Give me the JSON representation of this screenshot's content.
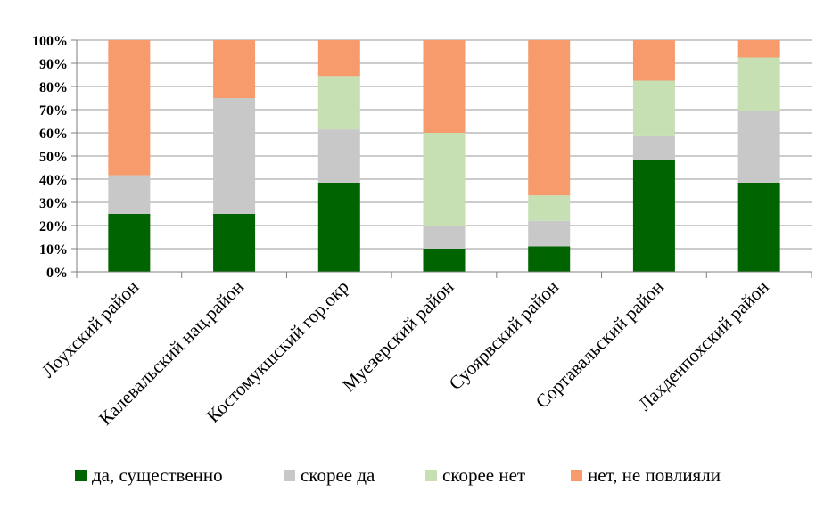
{
  "chart_data": {
    "type": "bar",
    "stacked": true,
    "percent": true,
    "categories": [
      "Лоухский район",
      "Калевальский нац.район",
      "Костомукшский гор.окр",
      "Муезерский  район",
      "Суоярвский район",
      "Сортавальский район",
      "Лахденпохский район"
    ],
    "series": [
      {
        "name": "да, существенно",
        "color": "#006400",
        "values": [
          25,
          25,
          38.5,
          10,
          11,
          48.5,
          38.5
        ]
      },
      {
        "name": "скорее да",
        "color": "#c8c8c8",
        "values": [
          16.7,
          50,
          23,
          10,
          11,
          10,
          31
        ]
      },
      {
        "name": "скорее нет",
        "color": "#c6e0b4",
        "values": [
          0,
          0,
          23,
          40,
          11,
          24,
          23
        ]
      },
      {
        "name": "нет, не повлияли",
        "color": "#f79b6c",
        "values": [
          58.3,
          25,
          15.5,
          40,
          67,
          17.5,
          7.5
        ]
      }
    ],
    "yticks": [
      "0%",
      "10%",
      "20%",
      "30%",
      "40%",
      "50%",
      "60%",
      "70%",
      "80%",
      "90%",
      "100%"
    ],
    "ylim": [
      0,
      100
    ],
    "grid": true,
    "legend": "bottom",
    "title": "",
    "xlabel": "",
    "ylabel": ""
  }
}
